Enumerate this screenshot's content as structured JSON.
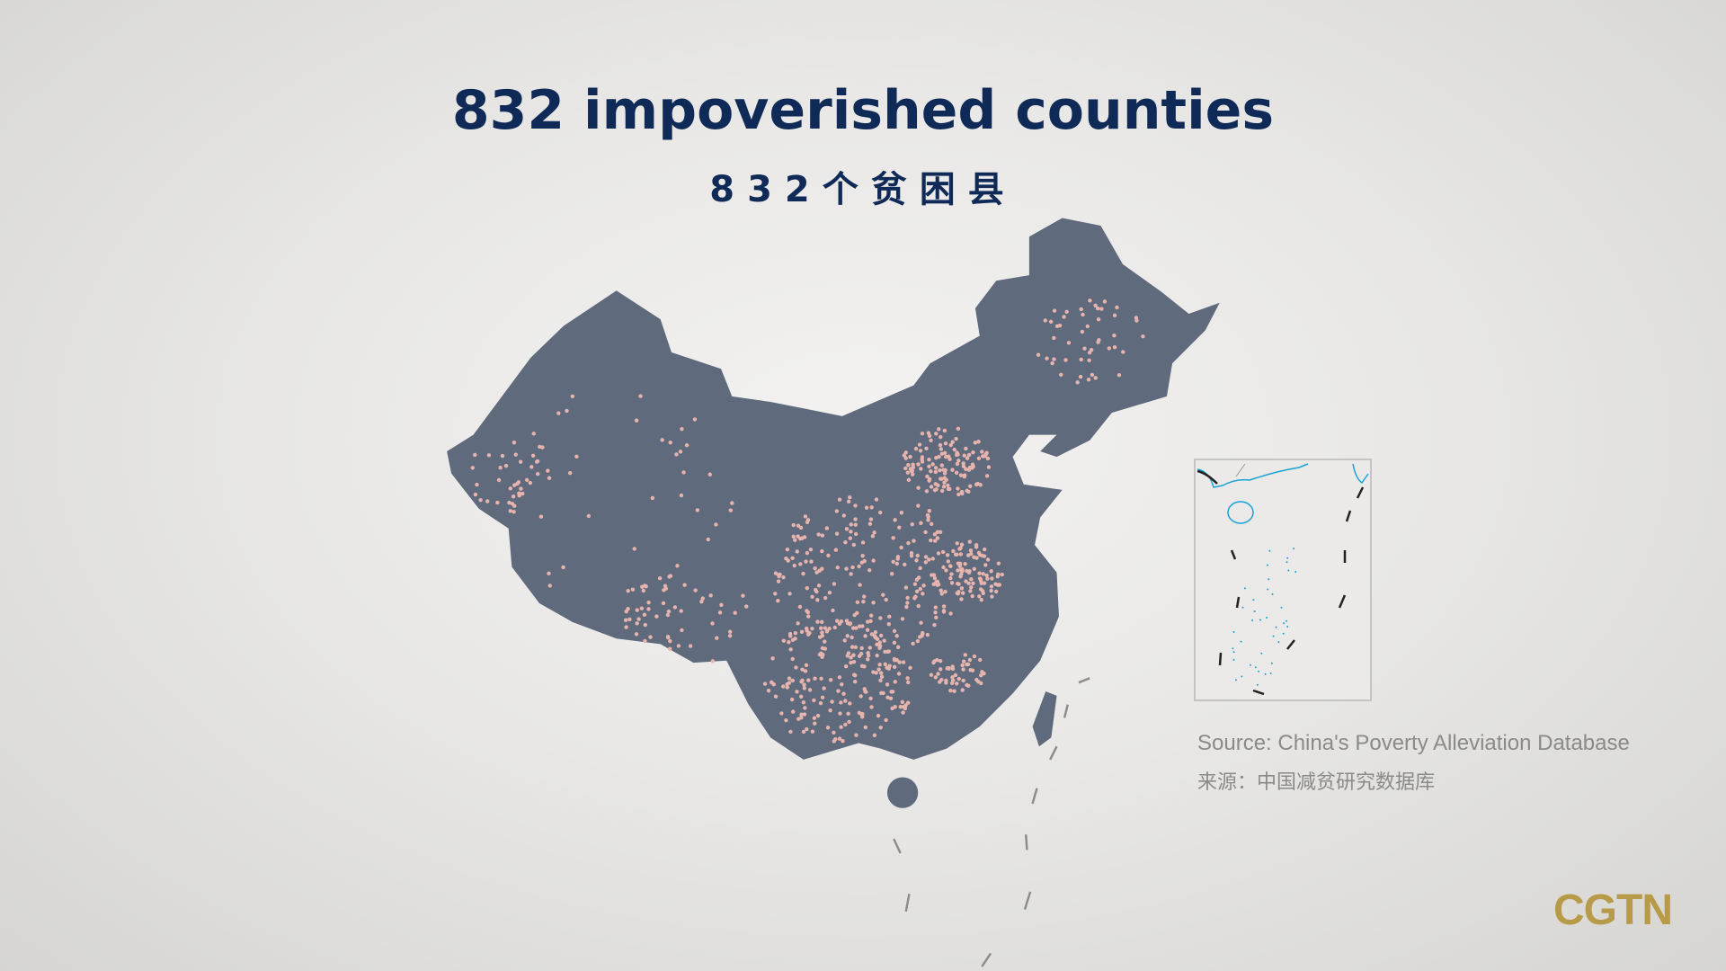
{
  "title": "832 impoverished counties",
  "subtitle": "832个贫困县",
  "map": {
    "region": "China",
    "marker_count": 832,
    "marker_meaning": "impoverished county",
    "colors": {
      "land": "#5f6a7d",
      "marker": "#e6b3ad",
      "inset_coast": "#1aa3d4",
      "background": "#e9e8e6"
    }
  },
  "inset": {
    "region": "South China Sea"
  },
  "source_en": "Source: China's Poverty Alleviation Database",
  "source_zh": "来源：中国减贫研究数据库",
  "logo": "CGTN",
  "colors": {
    "title": "#0f2a57",
    "logo": "#b79b48",
    "source": "#8a8a8a"
  }
}
